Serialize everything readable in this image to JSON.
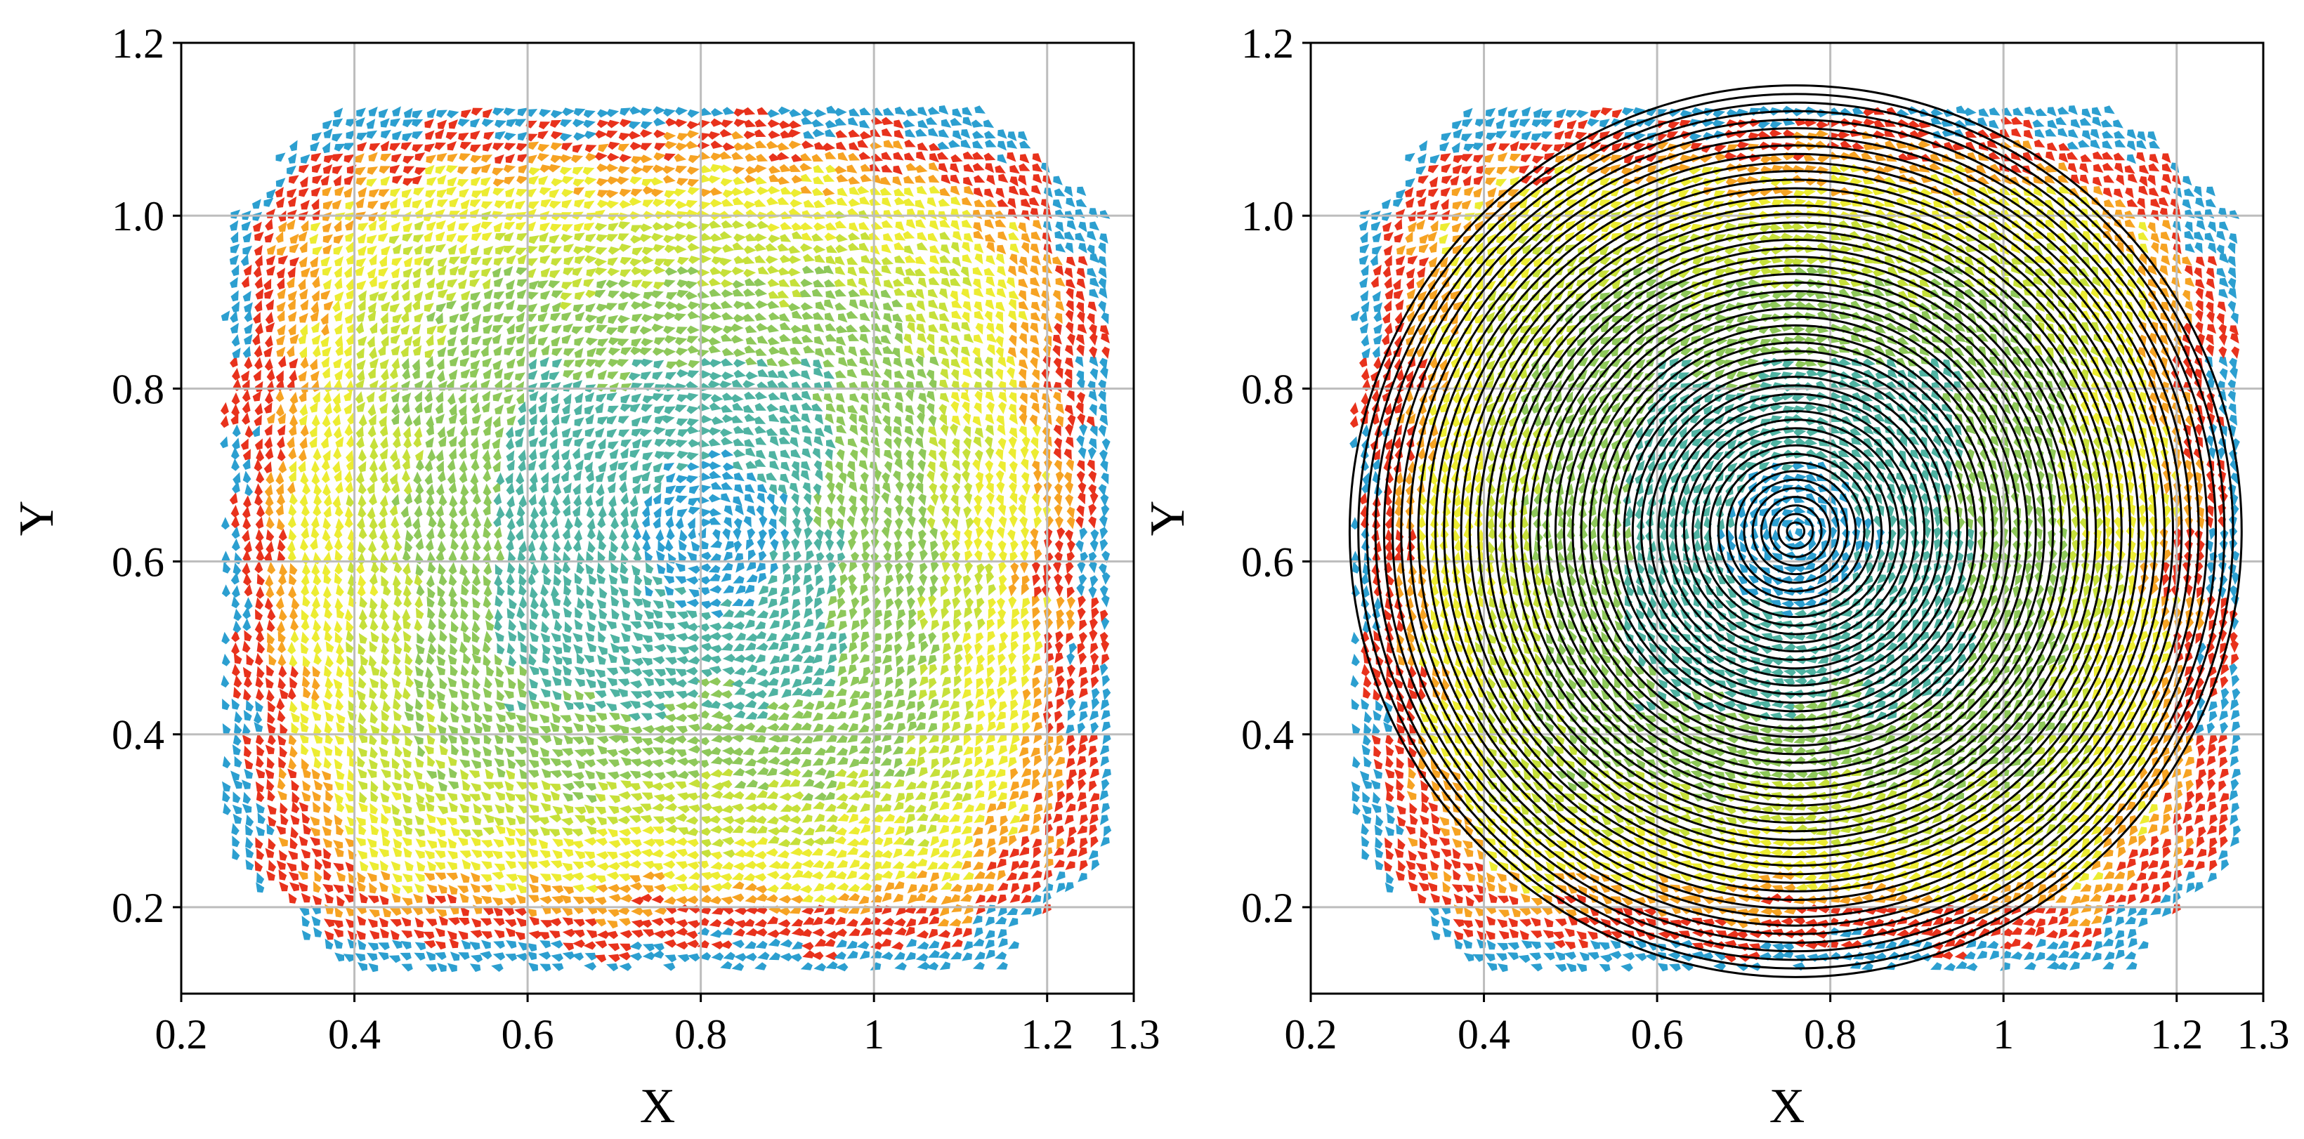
{
  "colors": {
    "blue": "#2c9fd0",
    "teal": "#4fb3a2",
    "green": "#8ec85a",
    "lime": "#c6e03a",
    "yellow": "#ecec32",
    "orange": "#f6a323",
    "red": "#e8321c",
    "grid": "#bdbdbd",
    "ring": "#000000"
  },
  "chart_data": [
    {
      "type": "heatmap",
      "subtype": "quiver",
      "title": "",
      "xlabel": "X",
      "ylabel": "Y",
      "xlim": [
        0.2,
        1.3
      ],
      "ylim": [
        0.1,
        1.2
      ],
      "xticks": [
        0.2,
        0.4,
        0.6,
        0.8,
        1.0,
        1.2,
        1.3
      ],
      "xtick_labels": [
        "0.2",
        "0.4",
        "0.6",
        "0.8",
        "1",
        "1.2",
        "1.3"
      ],
      "yticks": [
        0.2,
        0.4,
        0.6,
        0.8,
        1.0,
        1.2
      ],
      "ytick_labels": [
        "0.2",
        "0.4",
        "0.6",
        "0.8",
        "1.0",
        "1.2"
      ],
      "grid": true,
      "field": {
        "x_extent": [
          0.25,
          1.27
        ],
        "y_extent": [
          0.13,
          1.13
        ],
        "center": [
          0.81,
          0.63
        ],
        "color_by_distance_to_square_edge": [
          "blue",
          "teal",
          "green",
          "lime",
          "yellow",
          "orange",
          "red",
          "blue"
        ]
      },
      "overlay": null
    },
    {
      "type": "heatmap",
      "subtype": "quiver",
      "title": "",
      "xlabel": "X",
      "ylabel": "Y",
      "xlim": [
        0.2,
        1.3
      ],
      "ylim": [
        0.1,
        1.2
      ],
      "xticks": [
        0.2,
        0.4,
        0.6,
        0.8,
        1.0,
        1.2,
        1.3
      ],
      "xtick_labels": [
        "0.2",
        "0.4",
        "0.6",
        "0.8",
        "1",
        "1.2",
        "1.3"
      ],
      "yticks": [
        0.2,
        0.4,
        0.6,
        0.8,
        1.0,
        1.2
      ],
      "ytick_labels": [
        "0.2",
        "0.4",
        "0.6",
        "0.8",
        "1.0",
        "1.2"
      ],
      "grid": true,
      "field": {
        "x_extent": [
          0.25,
          1.27
        ],
        "y_extent": [
          0.13,
          1.13
        ],
        "center": [
          0.76,
          0.63
        ],
        "color_by_distance_to_square_edge": [
          "blue",
          "teal",
          "green",
          "lime",
          "yellow",
          "orange",
          "red",
          "blue"
        ]
      },
      "overlay": {
        "type": "concentric_circles",
        "center": [
          0.76,
          0.635
        ],
        "radius_min": 0.01,
        "radius_max": 0.515,
        "count": 52
      }
    }
  ]
}
